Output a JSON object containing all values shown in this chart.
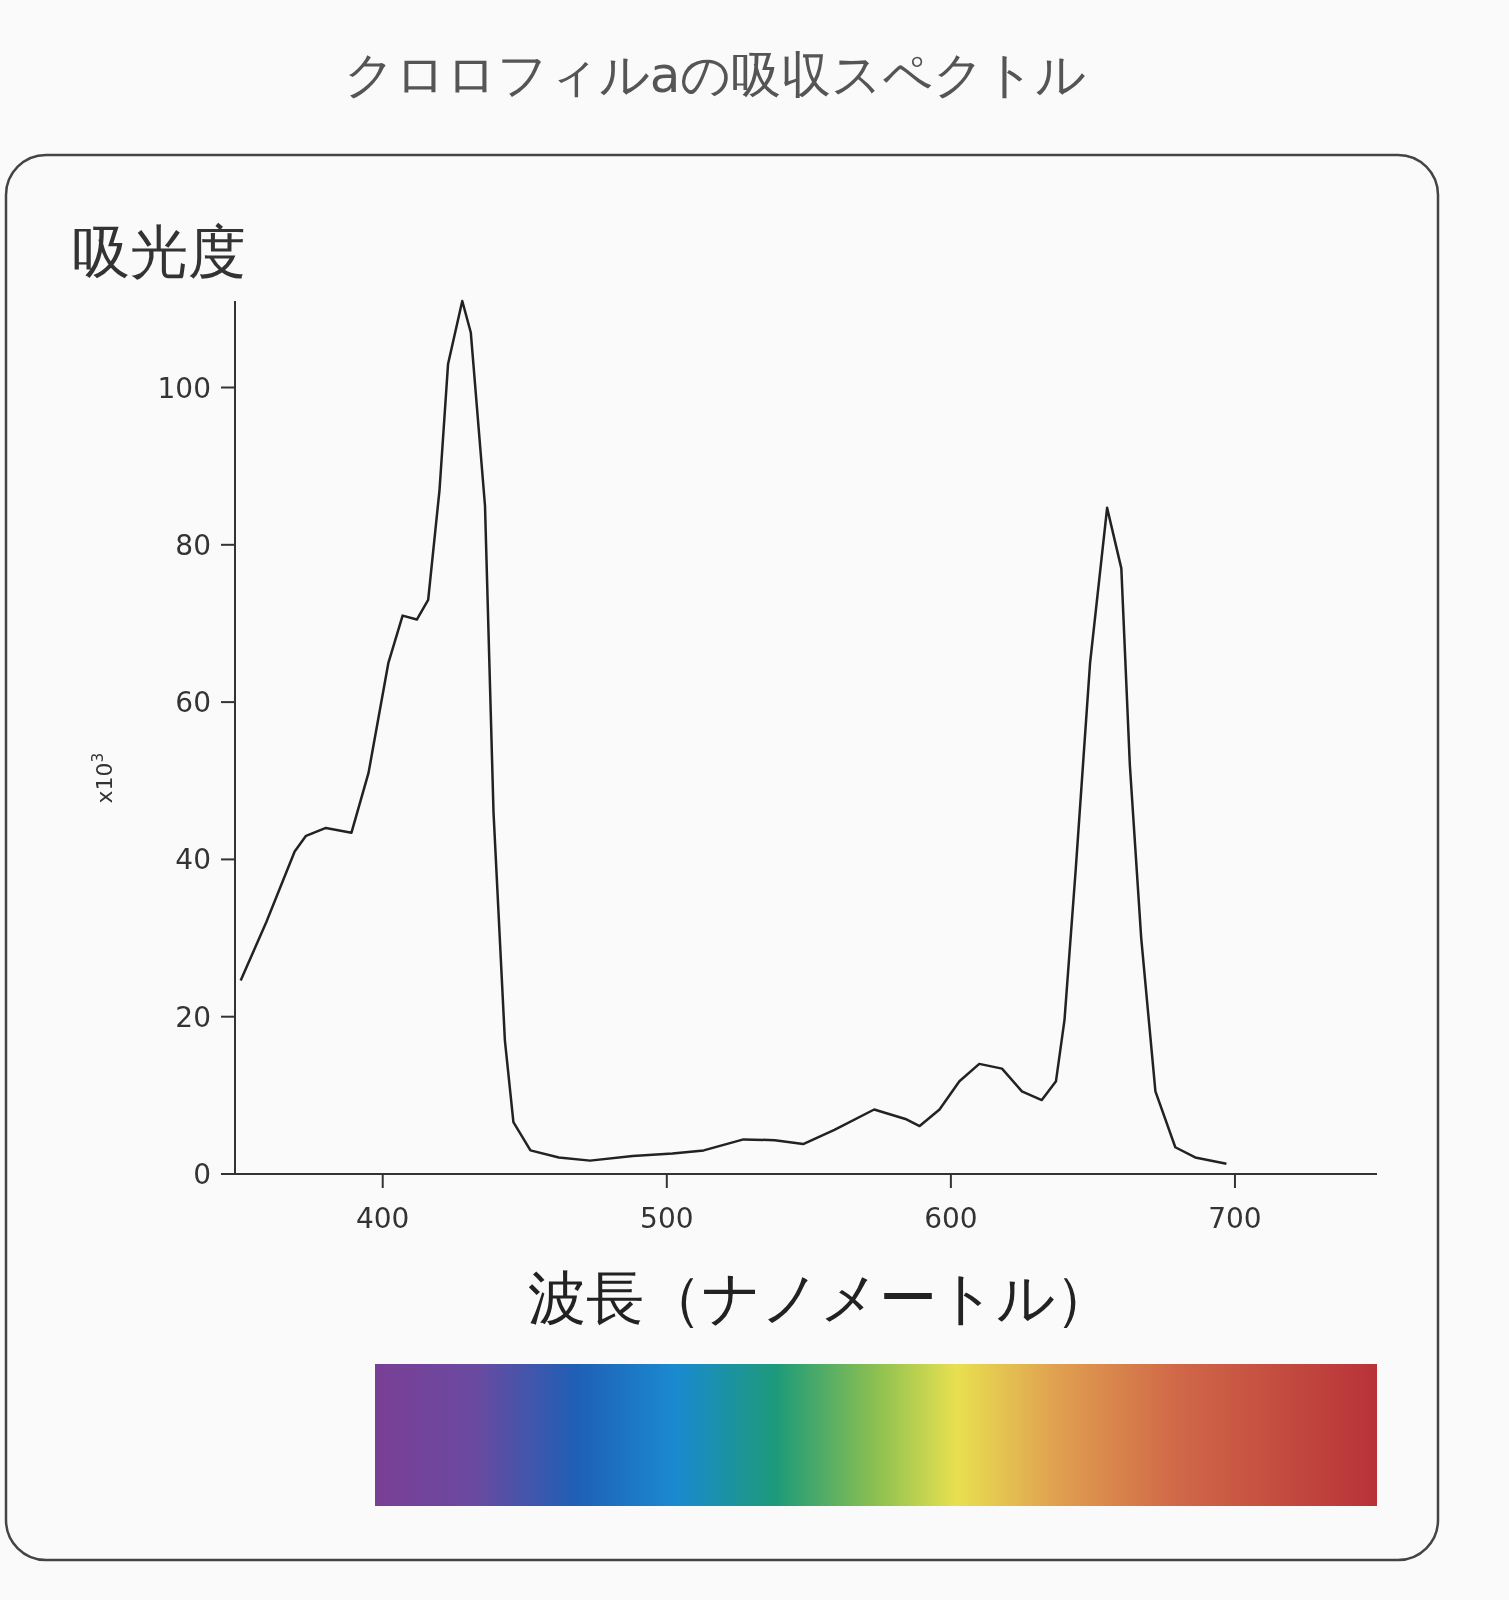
{
  "chart_data": {
    "type": "line",
    "title": "クロロフィルaの吸収スペクトル",
    "ylabel": "吸光度",
    "xlabel": "波長（ナノメートル）",
    "annotations": [
      "x10$^{3}$"
    ],
    "xlim": [
      348,
      750
    ],
    "ylim": [
      0,
      111
    ],
    "xticks": [
      400,
      500,
      600,
      700
    ],
    "yticks": [
      0,
      20,
      40,
      60,
      80,
      100
    ],
    "x": [
      350,
      359,
      369,
      373,
      380,
      389,
      395,
      402,
      407,
      412,
      416,
      420,
      423,
      428,
      431,
      436,
      439,
      443,
      446,
      452,
      462,
      473,
      488,
      502,
      513,
      527,
      538,
      548,
      559,
      573,
      584,
      589,
      596,
      603,
      610,
      618,
      625,
      632,
      637,
      640,
      644,
      649,
      655,
      660,
      663,
      667,
      672,
      679,
      686,
      697
    ],
    "series": [
      {
        "color": "#222222",
        "values": [
          24.6,
          32,
          41,
          43,
          44,
          43.4,
          51,
          65,
          71,
          70.5,
          73,
          87,
          103,
          111,
          107,
          85,
          46,
          17,
          6.6,
          3,
          2.1,
          1.7,
          2.3,
          2.6,
          3,
          4.4,
          4.3,
          3.8,
          5.6,
          8.2,
          7,
          6.1,
          8.2,
          11.8,
          14,
          13.4,
          10.5,
          9.4,
          11.8,
          19.6,
          39,
          65,
          84.7,
          77,
          52,
          30,
          10.5,
          3.4,
          2.1,
          1.3
        ]
      }
    ]
  }
}
